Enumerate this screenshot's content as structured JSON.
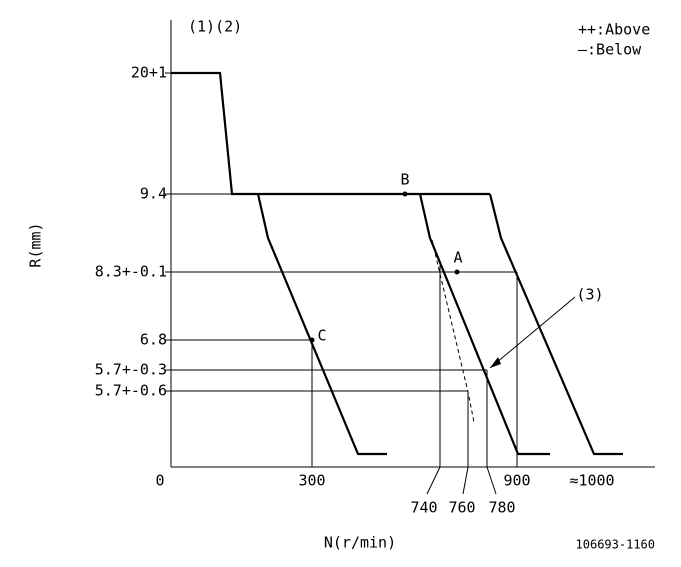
{
  "header": {
    "top_left": "(1)(2)",
    "legend_above": "++:Above",
    "legend_below": "—:Below"
  },
  "y_axis": {
    "title": "R(mm)",
    "labels": [
      "20+1",
      "9.4",
      "8.3+-0.1",
      "6.8",
      "5.7+-0.3",
      "5.7+-0.6",
      "0"
    ]
  },
  "x_axis": {
    "title": "N(r/min)",
    "labels": [
      "300",
      "900",
      "≈1000"
    ],
    "leader_labels": [
      "740",
      "760",
      "780"
    ]
  },
  "points": {
    "a": "A",
    "b": "B",
    "c": "C",
    "callout": "(3)"
  },
  "footer": {
    "code": "106693-1160"
  }
}
